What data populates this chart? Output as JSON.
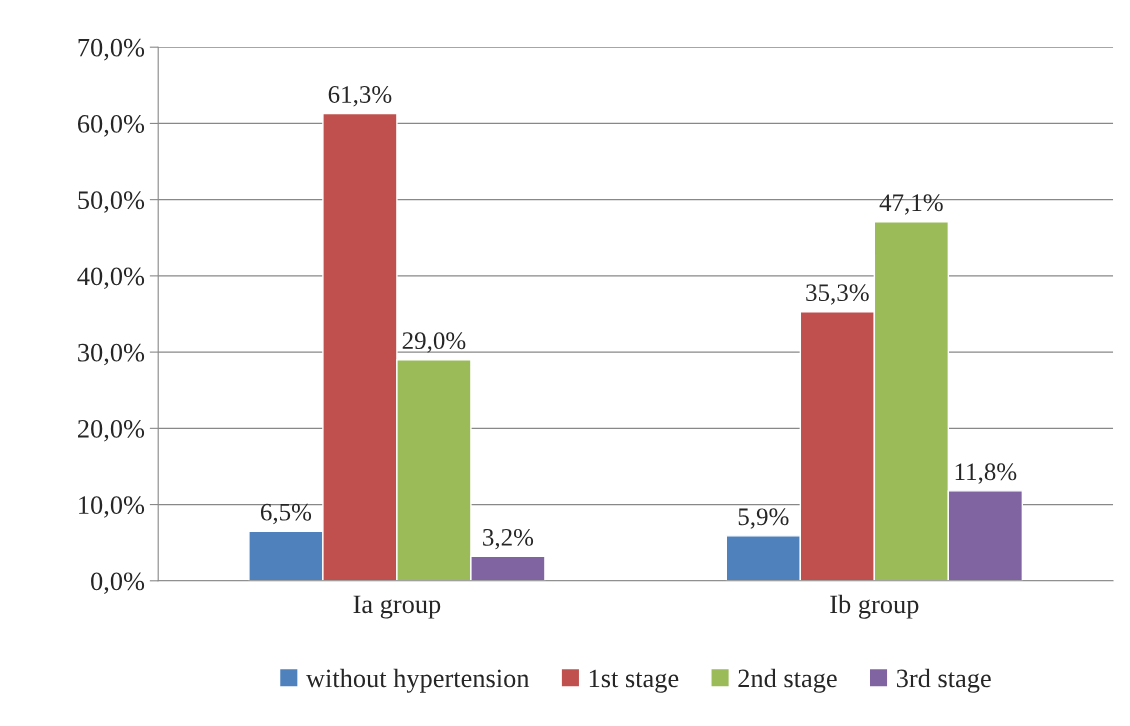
{
  "chart_data": {
    "type": "bar",
    "categories": [
      "Ia group",
      "Ib group"
    ],
    "series": [
      {
        "name": "without hypertension",
        "color": "#4f81bd",
        "values": [
          6.5,
          5.9
        ],
        "value_labels": [
          "6,5%",
          "5,9%"
        ]
      },
      {
        "name": "1st stage",
        "color": "#c0504d",
        "values": [
          61.3,
          35.3
        ],
        "value_labels": [
          "61,3%",
          "35,3%"
        ]
      },
      {
        "name": "2nd stage",
        "color": "#9bbb59",
        "values": [
          29.0,
          47.1
        ],
        "value_labels": [
          "29,0%",
          "47,1%"
        ]
      },
      {
        "name": "3rd stage",
        "color": "#8064a2",
        "values": [
          3.2,
          11.8
        ],
        "value_labels": [
          "3,2%",
          "11,8%"
        ]
      }
    ],
    "ylim": [
      0,
      70
    ],
    "yticks": [
      {
        "value": 0,
        "label": "0,0%"
      },
      {
        "value": 10,
        "label": "10,0%"
      },
      {
        "value": 20,
        "label": "20,0%"
      },
      {
        "value": 30,
        "label": "30,0%"
      },
      {
        "value": 40,
        "label": "40,0%"
      },
      {
        "value": 50,
        "label": "50,0%"
      },
      {
        "value": 60,
        "label": "60,0%"
      },
      {
        "value": 70,
        "label": "70,0%"
      }
    ],
    "grid": "y",
    "legend": "bottom"
  }
}
